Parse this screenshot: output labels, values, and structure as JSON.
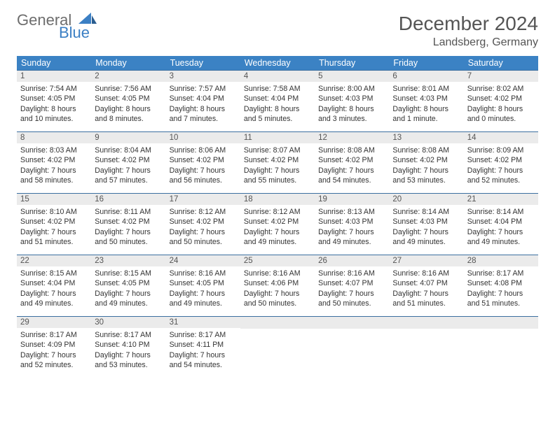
{
  "logo": {
    "top": "General",
    "bottom": "Blue"
  },
  "title": "December 2024",
  "location": "Landsberg, Germany",
  "colors": {
    "header_bg": "#3b82c4",
    "header_text": "#ffffff",
    "daynum_bg": "#ebebeb",
    "row_border": "#3b6fa0",
    "logo_blue": "#3b7fc4",
    "logo_gray": "#6d6d6d"
  },
  "weekdays": [
    "Sunday",
    "Monday",
    "Tuesday",
    "Wednesday",
    "Thursday",
    "Friday",
    "Saturday"
  ],
  "weeks": [
    [
      {
        "n": "1",
        "sunrise": "Sunrise: 7:54 AM",
        "sunset": "Sunset: 4:05 PM",
        "day": "Daylight: 8 hours and 10 minutes."
      },
      {
        "n": "2",
        "sunrise": "Sunrise: 7:56 AM",
        "sunset": "Sunset: 4:05 PM",
        "day": "Daylight: 8 hours and 8 minutes."
      },
      {
        "n": "3",
        "sunrise": "Sunrise: 7:57 AM",
        "sunset": "Sunset: 4:04 PM",
        "day": "Daylight: 8 hours and 7 minutes."
      },
      {
        "n": "4",
        "sunrise": "Sunrise: 7:58 AM",
        "sunset": "Sunset: 4:04 PM",
        "day": "Daylight: 8 hours and 5 minutes."
      },
      {
        "n": "5",
        "sunrise": "Sunrise: 8:00 AM",
        "sunset": "Sunset: 4:03 PM",
        "day": "Daylight: 8 hours and 3 minutes."
      },
      {
        "n": "6",
        "sunrise": "Sunrise: 8:01 AM",
        "sunset": "Sunset: 4:03 PM",
        "day": "Daylight: 8 hours and 1 minute."
      },
      {
        "n": "7",
        "sunrise": "Sunrise: 8:02 AM",
        "sunset": "Sunset: 4:02 PM",
        "day": "Daylight: 8 hours and 0 minutes."
      }
    ],
    [
      {
        "n": "8",
        "sunrise": "Sunrise: 8:03 AM",
        "sunset": "Sunset: 4:02 PM",
        "day": "Daylight: 7 hours and 58 minutes."
      },
      {
        "n": "9",
        "sunrise": "Sunrise: 8:04 AM",
        "sunset": "Sunset: 4:02 PM",
        "day": "Daylight: 7 hours and 57 minutes."
      },
      {
        "n": "10",
        "sunrise": "Sunrise: 8:06 AM",
        "sunset": "Sunset: 4:02 PM",
        "day": "Daylight: 7 hours and 56 minutes."
      },
      {
        "n": "11",
        "sunrise": "Sunrise: 8:07 AM",
        "sunset": "Sunset: 4:02 PM",
        "day": "Daylight: 7 hours and 55 minutes."
      },
      {
        "n": "12",
        "sunrise": "Sunrise: 8:08 AM",
        "sunset": "Sunset: 4:02 PM",
        "day": "Daylight: 7 hours and 54 minutes."
      },
      {
        "n": "13",
        "sunrise": "Sunrise: 8:08 AM",
        "sunset": "Sunset: 4:02 PM",
        "day": "Daylight: 7 hours and 53 minutes."
      },
      {
        "n": "14",
        "sunrise": "Sunrise: 8:09 AM",
        "sunset": "Sunset: 4:02 PM",
        "day": "Daylight: 7 hours and 52 minutes."
      }
    ],
    [
      {
        "n": "15",
        "sunrise": "Sunrise: 8:10 AM",
        "sunset": "Sunset: 4:02 PM",
        "day": "Daylight: 7 hours and 51 minutes."
      },
      {
        "n": "16",
        "sunrise": "Sunrise: 8:11 AM",
        "sunset": "Sunset: 4:02 PM",
        "day": "Daylight: 7 hours and 50 minutes."
      },
      {
        "n": "17",
        "sunrise": "Sunrise: 8:12 AM",
        "sunset": "Sunset: 4:02 PM",
        "day": "Daylight: 7 hours and 50 minutes."
      },
      {
        "n": "18",
        "sunrise": "Sunrise: 8:12 AM",
        "sunset": "Sunset: 4:02 PM",
        "day": "Daylight: 7 hours and 49 minutes."
      },
      {
        "n": "19",
        "sunrise": "Sunrise: 8:13 AM",
        "sunset": "Sunset: 4:03 PM",
        "day": "Daylight: 7 hours and 49 minutes."
      },
      {
        "n": "20",
        "sunrise": "Sunrise: 8:14 AM",
        "sunset": "Sunset: 4:03 PM",
        "day": "Daylight: 7 hours and 49 minutes."
      },
      {
        "n": "21",
        "sunrise": "Sunrise: 8:14 AM",
        "sunset": "Sunset: 4:04 PM",
        "day": "Daylight: 7 hours and 49 minutes."
      }
    ],
    [
      {
        "n": "22",
        "sunrise": "Sunrise: 8:15 AM",
        "sunset": "Sunset: 4:04 PM",
        "day": "Daylight: 7 hours and 49 minutes."
      },
      {
        "n": "23",
        "sunrise": "Sunrise: 8:15 AM",
        "sunset": "Sunset: 4:05 PM",
        "day": "Daylight: 7 hours and 49 minutes."
      },
      {
        "n": "24",
        "sunrise": "Sunrise: 8:16 AM",
        "sunset": "Sunset: 4:05 PM",
        "day": "Daylight: 7 hours and 49 minutes."
      },
      {
        "n": "25",
        "sunrise": "Sunrise: 8:16 AM",
        "sunset": "Sunset: 4:06 PM",
        "day": "Daylight: 7 hours and 50 minutes."
      },
      {
        "n": "26",
        "sunrise": "Sunrise: 8:16 AM",
        "sunset": "Sunset: 4:07 PM",
        "day": "Daylight: 7 hours and 50 minutes."
      },
      {
        "n": "27",
        "sunrise": "Sunrise: 8:16 AM",
        "sunset": "Sunset: 4:07 PM",
        "day": "Daylight: 7 hours and 51 minutes."
      },
      {
        "n": "28",
        "sunrise": "Sunrise: 8:17 AM",
        "sunset": "Sunset: 4:08 PM",
        "day": "Daylight: 7 hours and 51 minutes."
      }
    ],
    [
      {
        "n": "29",
        "sunrise": "Sunrise: 8:17 AM",
        "sunset": "Sunset: 4:09 PM",
        "day": "Daylight: 7 hours and 52 minutes."
      },
      {
        "n": "30",
        "sunrise": "Sunrise: 8:17 AM",
        "sunset": "Sunset: 4:10 PM",
        "day": "Daylight: 7 hours and 53 minutes."
      },
      {
        "n": "31",
        "sunrise": "Sunrise: 8:17 AM",
        "sunset": "Sunset: 4:11 PM",
        "day": "Daylight: 7 hours and 54 minutes."
      },
      null,
      null,
      null,
      null
    ]
  ]
}
